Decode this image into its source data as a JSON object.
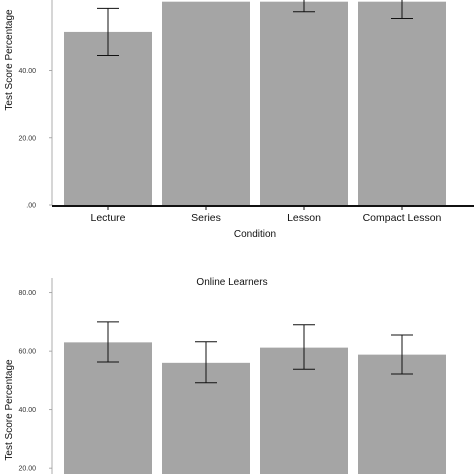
{
  "chart_data": [
    {
      "type": "bar",
      "title": "",
      "xlabel": "Condition",
      "ylabel": "Test Score Percentage",
      "categories": [
        "Lecture",
        "Series",
        "Lesson",
        "Compact Lesson"
      ],
      "values": [
        51.5,
        60.5,
        60.5,
        60.5
      ],
      "error_low": [
        44.5,
        null,
        57.5,
        55.5
      ],
      "error_high": [
        58.5,
        null,
        61.5,
        61.5
      ],
      "ylim": [
        0,
        61
      ],
      "yticks": [
        0,
        20,
        40
      ],
      "ytick_labels": [
        ".00",
        "20.00",
        "40.00"
      ],
      "bar_color": "#a5a5a5",
      "grid": false
    },
    {
      "type": "bar",
      "title": "Online Learners",
      "xlabel": "",
      "ylabel": "Test Score Percentage",
      "categories": [
        "",
        "",
        "",
        ""
      ],
      "values": [
        63,
        56,
        61.2,
        58.8
      ],
      "error_low": [
        56.3,
        49.2,
        53.8,
        52.2
      ],
      "error_high": [
        70,
        63.2,
        69,
        65.5
      ],
      "ylim": [
        18,
        85
      ],
      "yticks": [
        20,
        40,
        60,
        80
      ],
      "ytick_labels": [
        "20.00",
        "40.00",
        "60.00",
        "80.00"
      ],
      "bar_color": "#a5a5a5",
      "grid": false
    }
  ]
}
